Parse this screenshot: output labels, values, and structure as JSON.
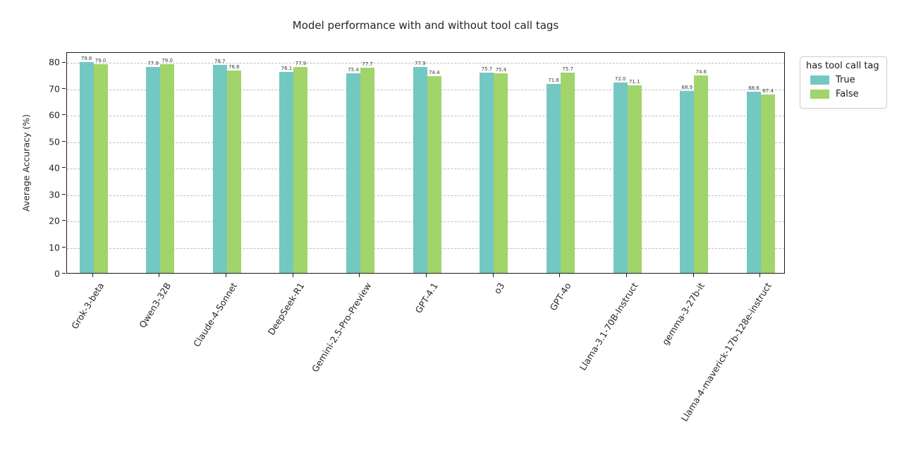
{
  "chart_data": {
    "type": "bar",
    "title": "Model performance with and without tool call tags",
    "xlabel": "",
    "ylabel": "Average Accuracy (%)",
    "ylim": [
      0,
      83.8
    ],
    "yticks": [
      0,
      10,
      20,
      30,
      40,
      50,
      60,
      70,
      80
    ],
    "grid": "horizontal-dashed",
    "legend": {
      "title": "has tool call tag",
      "position": "outside-upper-right",
      "entries": [
        "True",
        "False"
      ]
    },
    "bar_value_labels": true,
    "categories": [
      "Grok-3-beta",
      "Qwen3-32B",
      "Claude-4-Sonnet",
      "DeepSeek-R1",
      "Gemini-2.5-Pro-Preview",
      "GPT-4.1",
      "o3",
      "GPT-4o",
      "Llama-3.1-70B-Instruct",
      "gemma-3-27b-it",
      "Llama-4-maverick-17b-128e-instruct"
    ],
    "series": [
      {
        "name": "True",
        "color": "#73c8c2",
        "values": [
          79.8,
          77.9,
          78.7,
          76.1,
          75.4,
          77.9,
          75.7,
          71.6,
          72.0,
          68.9,
          68.6
        ]
      },
      {
        "name": "False",
        "color": "#a1d46a",
        "values": [
          79.0,
          79.0,
          76.6,
          77.9,
          77.7,
          74.4,
          75.4,
          75.7,
          71.1,
          74.6,
          67.4
        ]
      }
    ],
    "colors": {
      "axis": "#1a1a1a",
      "gridline": "#bdbdbd",
      "text": "#262626"
    }
  }
}
